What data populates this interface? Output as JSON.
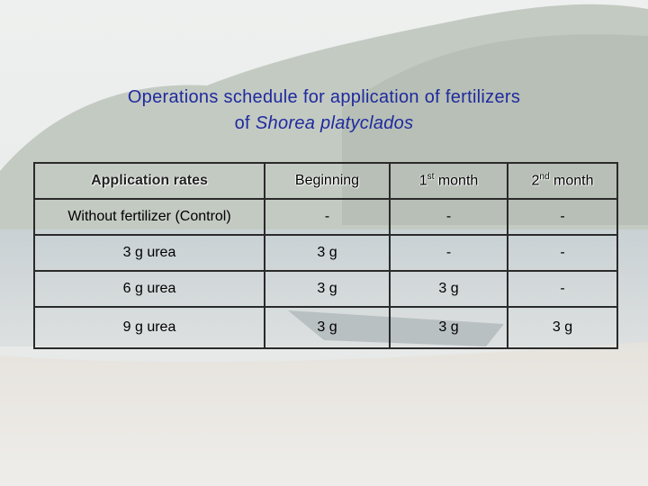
{
  "title": {
    "line1": "Operations schedule for application of fertilizers",
    "line2_prefix": "of",
    "line2_species": "Shorea platyclados"
  },
  "table": {
    "header": [
      {
        "text": "Application rates"
      },
      {
        "text": "Beginning"
      },
      {
        "base": "1",
        "sup": "st",
        "rest": "month"
      },
      {
        "base": "2",
        "sup": "nd",
        "rest": "month"
      }
    ],
    "rows": [
      [
        "Without fertilizer (Control)",
        "-",
        "-",
        "-"
      ],
      [
        "3 g urea",
        "3 g",
        "-",
        "-"
      ],
      [
        "6 g urea",
        "3 g",
        "3 g",
        "-"
      ],
      [
        "9 g urea",
        "3 g",
        "3 g",
        "3 g"
      ]
    ]
  }
}
